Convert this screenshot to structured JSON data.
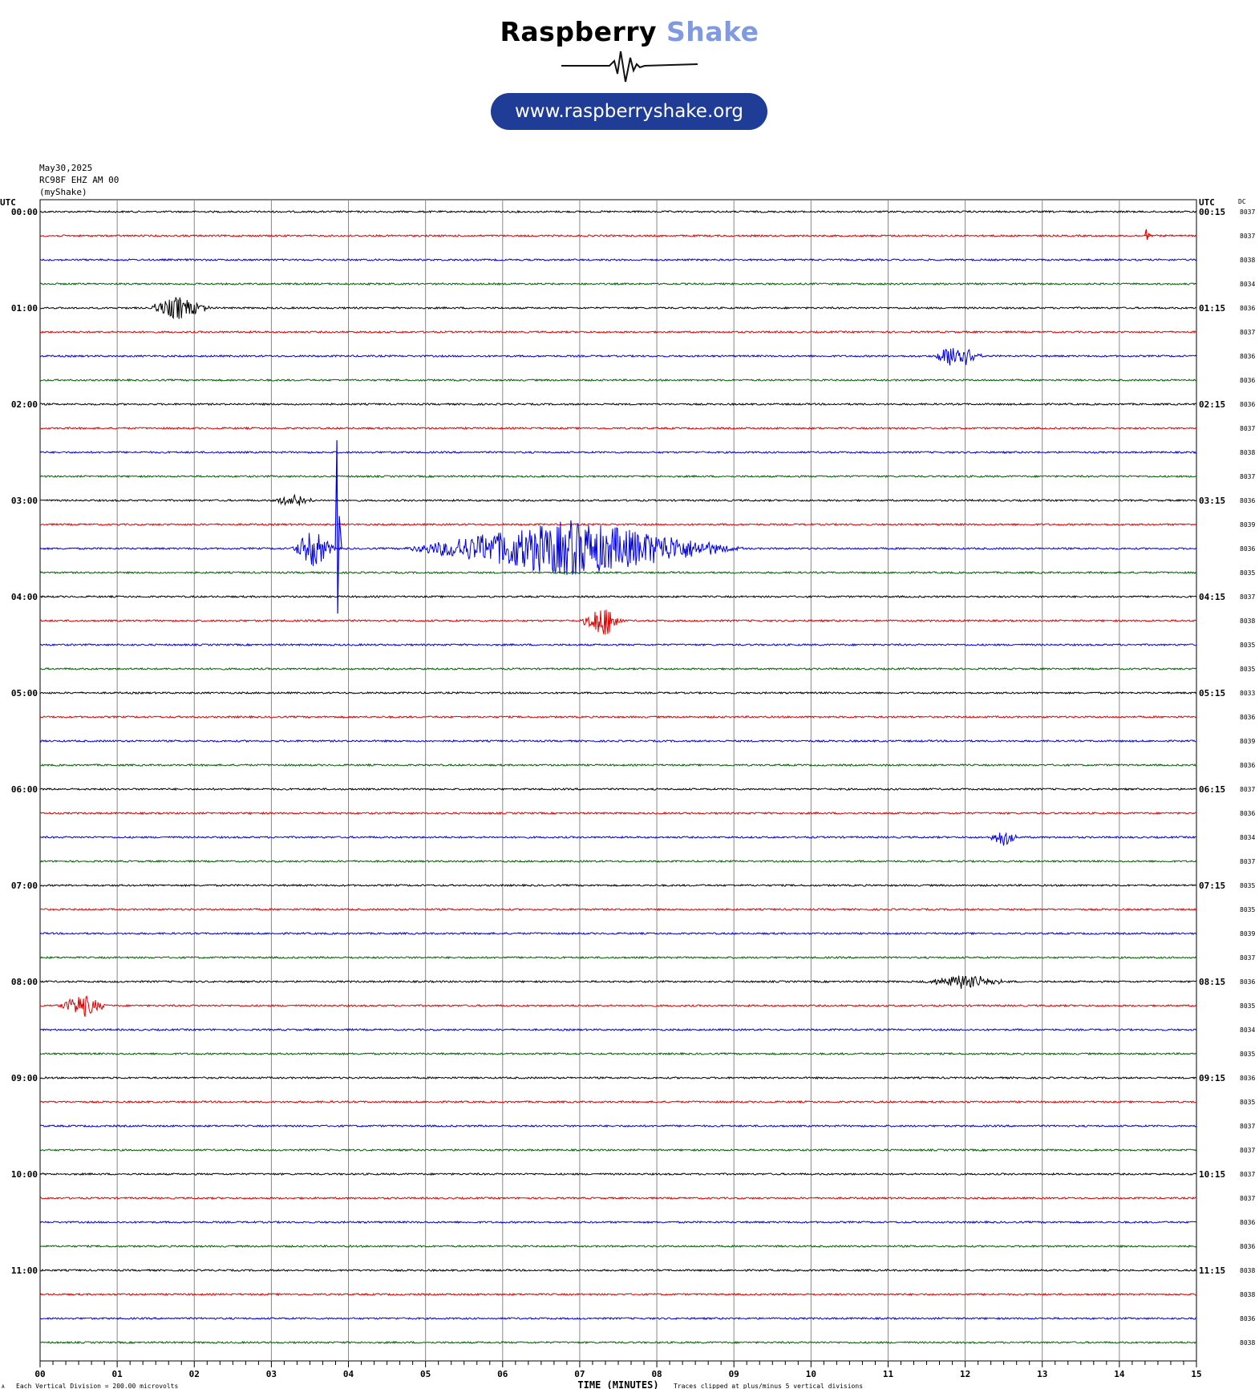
{
  "logo": {
    "brand_part1": "Raspberry",
    "brand_part2": "Shake",
    "url": "www.raspberryshake.org",
    "brand_color": "#1f3c96",
    "accent_color": "#7f9ae2"
  },
  "header": {
    "date": "May30,2025",
    "station": "RC98F EHZ AM 00",
    "source": "(myShake)"
  },
  "chart_data": {
    "type": "line",
    "subtype": "helicorder",
    "left_axis_title": "UTC",
    "right_axis_title": "UTC",
    "dc_title": "DC",
    "xlabel": "TIME (MINUTES)",
    "x_ticks": [
      "00",
      "01",
      "02",
      "03",
      "04",
      "05",
      "06",
      "07",
      "08",
      "09",
      "10",
      "11",
      "12",
      "13",
      "14",
      "15"
    ],
    "xlim": [
      0,
      15
    ],
    "left_labels": [
      "00:00",
      "01:00",
      "02:00",
      "03:00",
      "04:00",
      "05:00",
      "06:00",
      "07:00",
      "08:00",
      "09:00",
      "10:00",
      "11:00"
    ],
    "right_labels": [
      "00:15",
      "01:15",
      "02:15",
      "03:15",
      "04:15",
      "05:15",
      "06:15",
      "07:15",
      "08:15",
      "09:15",
      "10:15",
      "11:15"
    ],
    "trace_colors": [
      "#000000",
      "#e00000",
      "#0000e0",
      "#006000"
    ],
    "dc_values": [
      "8037",
      "8037",
      "8038",
      "8034",
      "8036",
      "8037",
      "8036",
      "8036",
      "8036",
      "8037",
      "8038",
      "8037",
      "8036",
      "8039",
      "8036",
      "8035",
      "8037",
      "8038",
      "8035",
      "8035",
      "8033",
      "8036",
      "8039",
      "8036",
      "8037",
      "8036",
      "8034",
      "8037",
      "8035",
      "8035",
      "8039",
      "8037",
      "8036",
      "8035",
      "8034",
      "8035",
      "8036",
      "8035",
      "8037",
      "8037",
      "8037",
      "8037",
      "8036",
      "8036",
      "8038",
      "8038",
      "8036",
      "8038"
    ],
    "events": [
      {
        "row": 14,
        "minute": 3.85,
        "amplitude": 10,
        "type": "spike"
      },
      {
        "row": 14,
        "minute": 6.9,
        "amplitude": 1.2,
        "type": "burst",
        "duration": 4.5
      },
      {
        "row": 14,
        "minute": 3.55,
        "amplitude": 0.8,
        "type": "burst",
        "duration": 0.6
      },
      {
        "row": 17,
        "minute": 7.3,
        "amplitude": 0.7,
        "type": "burst",
        "duration": 0.6
      },
      {
        "row": 6,
        "minute": 11.9,
        "amplitude": 0.6,
        "type": "burst",
        "duration": 0.7
      },
      {
        "row": 4,
        "minute": 1.8,
        "amplitude": 0.5,
        "type": "burst",
        "duration": 0.9
      },
      {
        "row": 1,
        "minute": 14.35,
        "amplitude": 0.6,
        "type": "spike"
      },
      {
        "row": 33,
        "minute": 0.55,
        "amplitude": 0.5,
        "type": "burst",
        "duration": 0.7
      },
      {
        "row": 26,
        "minute": 12.5,
        "amplitude": 0.4,
        "type": "burst",
        "duration": 0.4
      },
      {
        "row": 32,
        "minute": 12.0,
        "amplitude": 0.3,
        "type": "burst",
        "duration": 1.2
      },
      {
        "row": 12,
        "minute": 3.3,
        "amplitude": 0.3,
        "type": "burst",
        "duration": 0.6
      }
    ],
    "footer_left": "Each Vertical Division =  200.00 microvolts",
    "footer_right": "Traces clipped at plus/minus 5 vertical divisions",
    "corner_mark": "A"
  }
}
